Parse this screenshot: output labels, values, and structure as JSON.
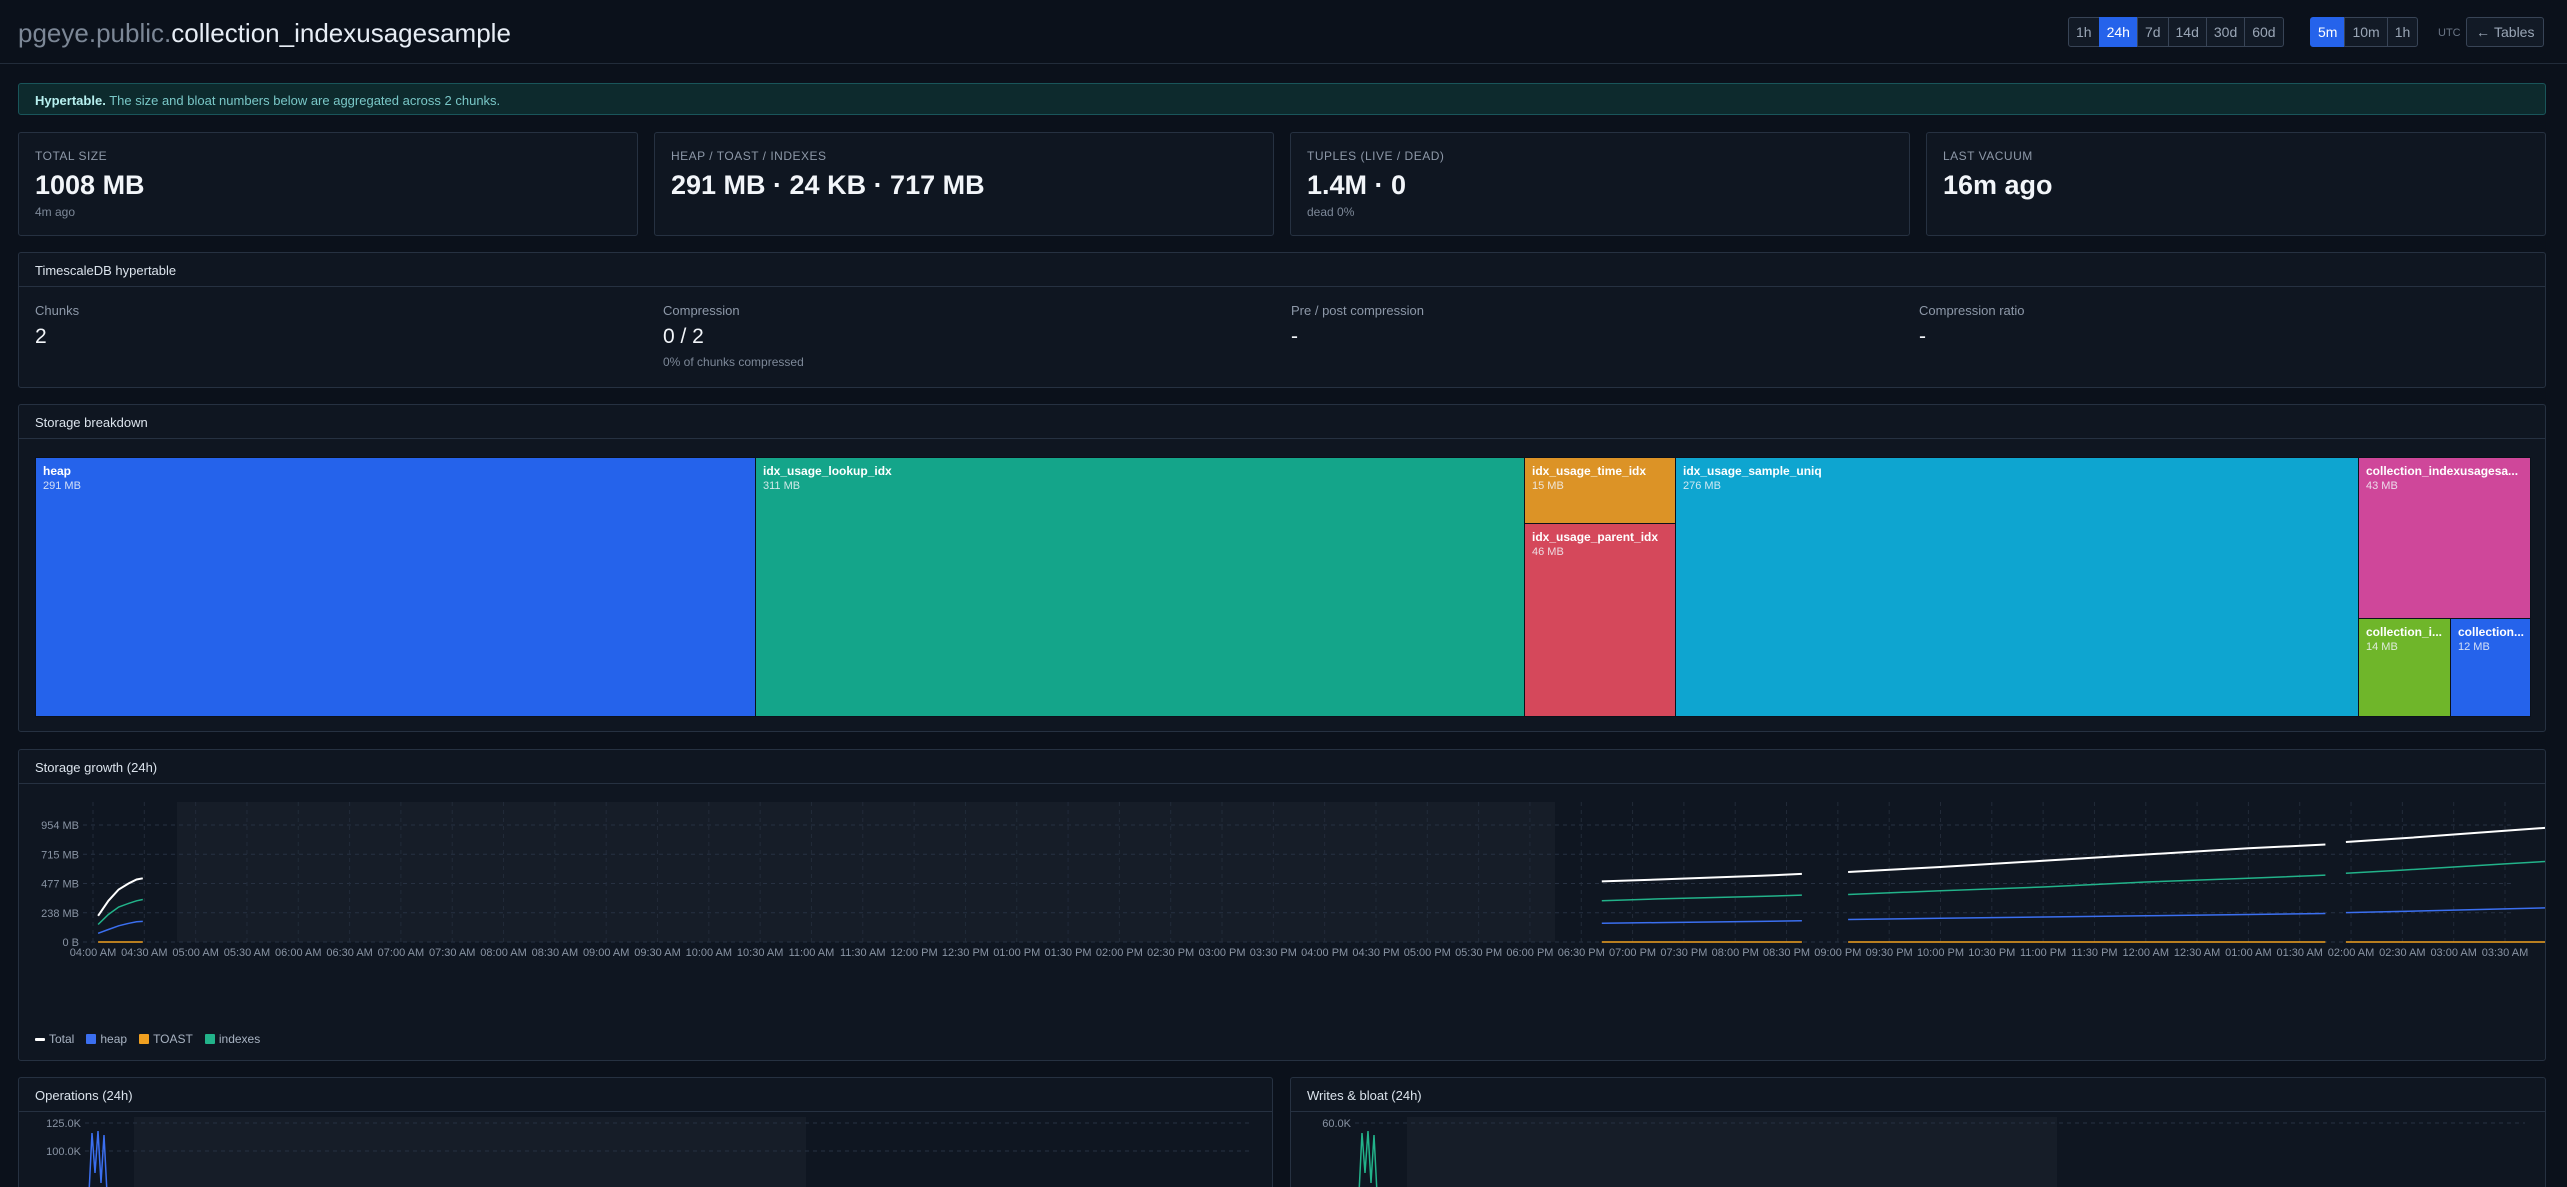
{
  "header": {
    "title_prefix": "pgeye.public.",
    "title_table": "collection_indexusagesample",
    "range_windows": [
      "1h",
      "24h",
      "7d",
      "14d",
      "30d",
      "60d"
    ],
    "active_window": "24h",
    "bucket_sizes": [
      "5m",
      "10m",
      "1h"
    ],
    "active_bucket": "5m",
    "timezone": "UTC",
    "back_label": "Tables",
    "back_icon": "arrow-left-icon"
  },
  "banner": {
    "strong": "Hypertable.",
    "text": "The size and bloat numbers below are aggregated across 2 chunks."
  },
  "stats": [
    {
      "label": "TOTAL SIZE",
      "value": "1008 MB",
      "sub": "4m ago"
    },
    {
      "label": "HEAP / TOAST / INDEXES",
      "value": "291 MB · 24 KB · 717 MB",
      "sub": ""
    },
    {
      "label": "TUPLES (LIVE / DEAD)",
      "value": "1.4M · 0",
      "sub": "dead 0%"
    },
    {
      "label": "LAST VACUUM",
      "value": "16m ago",
      "sub": ""
    }
  ],
  "hypertable": {
    "title": "TimescaleDB hypertable",
    "columns": [
      {
        "label": "Chunks",
        "value": "2",
        "sub": ""
      },
      {
        "label": "Compression",
        "value": "0 / 2",
        "sub": "0% of chunks compressed"
      },
      {
        "label": "Pre / post compression",
        "value": "-",
        "sub": ""
      },
      {
        "label": "Compression ratio",
        "value": "-",
        "sub": ""
      }
    ]
  },
  "storage_breakdown": {
    "title": "Storage breakdown",
    "tiles": [
      {
        "name": "heap",
        "size": "291 MB",
        "color": "#2563eb"
      },
      {
        "name": "idx_usage_lookup_idx",
        "size": "311 MB",
        "color": "#14a58a"
      },
      {
        "name": "idx_usage_time_idx",
        "size": "15 MB",
        "color": "#dc9326"
      },
      {
        "name": "idx_usage_parent_idx",
        "size": "46 MB",
        "color": "#d5485b"
      },
      {
        "name": "idx_usage_sample_uniq",
        "size": "276 MB",
        "color": "#0ea5d0"
      },
      {
        "name": "collection_indexusagesa...",
        "size": "43 MB",
        "color": "#cf479a"
      },
      {
        "name": "collection_i...",
        "size": "14 MB",
        "color": "#6fb62a"
      },
      {
        "name": "collection...",
        "size": "12 MB",
        "color": "#2563eb"
      }
    ]
  },
  "storage_growth": {
    "title": "Storage growth (24h)",
    "legend": [
      {
        "name": "Total",
        "color": "#ffffff"
      },
      {
        "name": "heap",
        "color": "#3b6ff0"
      },
      {
        "name": "TOAST",
        "color": "#f0a020"
      },
      {
        "name": "indexes",
        "color": "#22b38a"
      }
    ]
  },
  "operations": {
    "title": "Operations (24h)"
  },
  "writes_bloat": {
    "title": "Writes & bloat (24h)"
  },
  "chart_data": [
    {
      "type": "line",
      "title": "Storage growth (24h)",
      "x": [
        "04:00 AM",
        "04:30 AM",
        "05:00 AM",
        "05:30 AM",
        "06:00 AM",
        "06:30 AM",
        "07:00 AM",
        "07:30 AM",
        "08:00 AM",
        "08:30 AM",
        "09:00 AM",
        "09:30 AM",
        "10:00 AM",
        "10:30 AM",
        "11:00 AM",
        "11:30 AM",
        "12:00 PM",
        "12:30 PM",
        "01:00 PM",
        "01:30 PM",
        "02:00 PM",
        "02:30 PM",
        "03:00 PM",
        "03:30 PM",
        "04:00 PM",
        "04:30 PM",
        "05:00 PM",
        "05:30 PM",
        "06:00 PM",
        "06:30 PM",
        "07:00 PM",
        "07:30 PM",
        "08:00 PM",
        "08:30 PM",
        "09:00 PM",
        "09:30 PM",
        "10:00 PM",
        "10:30 PM",
        "11:00 PM",
        "11:30 PM",
        "12:00 AM",
        "12:30 AM",
        "01:00 AM",
        "01:30 AM",
        "02:00 AM",
        "02:30 AM",
        "03:00 AM",
        "03:30 AM"
      ],
      "y_ticks": [
        "954 MB",
        "715 MB",
        "477 MB",
        "238 MB",
        "0 B"
      ],
      "ylim_mb": [
        0,
        1008
      ],
      "series": [
        {
          "name": "Total",
          "segments": [
            {
              "x": [
                0.1,
                0.3,
                0.5,
                0.7,
                0.85,
                0.97
              ],
              "y": [
                210,
                330,
                420,
                470,
                500,
                510
              ]
            },
            {
              "x": [
                29.4,
                30.5,
                31.5,
                32.5,
                33.3
              ],
              "y": [
                485,
                500,
                515,
                530,
                545
              ]
            },
            {
              "x": [
                34.2,
                36,
                38,
                40,
                42,
                43.5
              ],
              "y": [
                560,
                600,
                650,
                700,
                750,
                780
              ]
            },
            {
              "x": [
                43.9,
                45,
                46,
                47,
                48,
                49.7
              ],
              "y": [
                800,
                830,
                860,
                890,
                920,
                950
              ]
            }
          ]
        },
        {
          "name": "heap",
          "segments": [
            {
              "x": [
                0.1,
                0.3,
                0.5,
                0.7,
                0.85,
                0.97
              ],
              "y": [
                70,
                100,
                130,
                150,
                162,
                165
              ]
            },
            {
              "x": [
                29.4,
                30.5,
                31.5,
                32.5,
                33.3
              ],
              "y": [
                150,
                155,
                160,
                165,
                170
              ]
            },
            {
              "x": [
                34.2,
                36,
                38,
                40,
                42,
                43.5
              ],
              "y": [
                180,
                190,
                200,
                210,
                220,
                228
              ]
            },
            {
              "x": [
                43.9,
                45,
                46,
                47,
                48,
                49.7
              ],
              "y": [
                235,
                245,
                255,
                265,
                275,
                285
              ]
            }
          ]
        },
        {
          "name": "TOAST",
          "segments": [
            {
              "x": [
                0.1,
                0.97
              ],
              "y": [
                0,
                0
              ]
            },
            {
              "x": [
                29.4,
                33.3
              ],
              "y": [
                0,
                0
              ]
            },
            {
              "x": [
                34.2,
                43.5
              ],
              "y": [
                0,
                0
              ]
            },
            {
              "x": [
                43.9,
                49.7
              ],
              "y": [
                0,
                0
              ]
            }
          ]
        },
        {
          "name": "indexes",
          "segments": [
            {
              "x": [
                0.1,
                0.3,
                0.5,
                0.7,
                0.85,
                0.97
              ],
              "y": [
                140,
                220,
                280,
                310,
                330,
                340
              ]
            },
            {
              "x": [
                29.4,
                30.5,
                31.5,
                32.5,
                33.3
              ],
              "y": [
                330,
                345,
                355,
                365,
                375
              ]
            },
            {
              "x": [
                34.2,
                36,
                38,
                40,
                42,
                43.5
              ],
              "y": [
                380,
                410,
                440,
                480,
                510,
                535
              ]
            },
            {
              "x": [
                43.9,
                45,
                46,
                47,
                48,
                49.7
              ],
              "y": [
                550,
                575,
                600,
                625,
                650,
                670
              ]
            }
          ]
        }
      ]
    },
    {
      "type": "line",
      "title": "Operations (24h)",
      "y_ticks": [
        "125.0K",
        "100.0K"
      ]
    },
    {
      "type": "line",
      "title": "Writes & bloat (24h)",
      "y_ticks": [
        "60.0K"
      ]
    }
  ]
}
